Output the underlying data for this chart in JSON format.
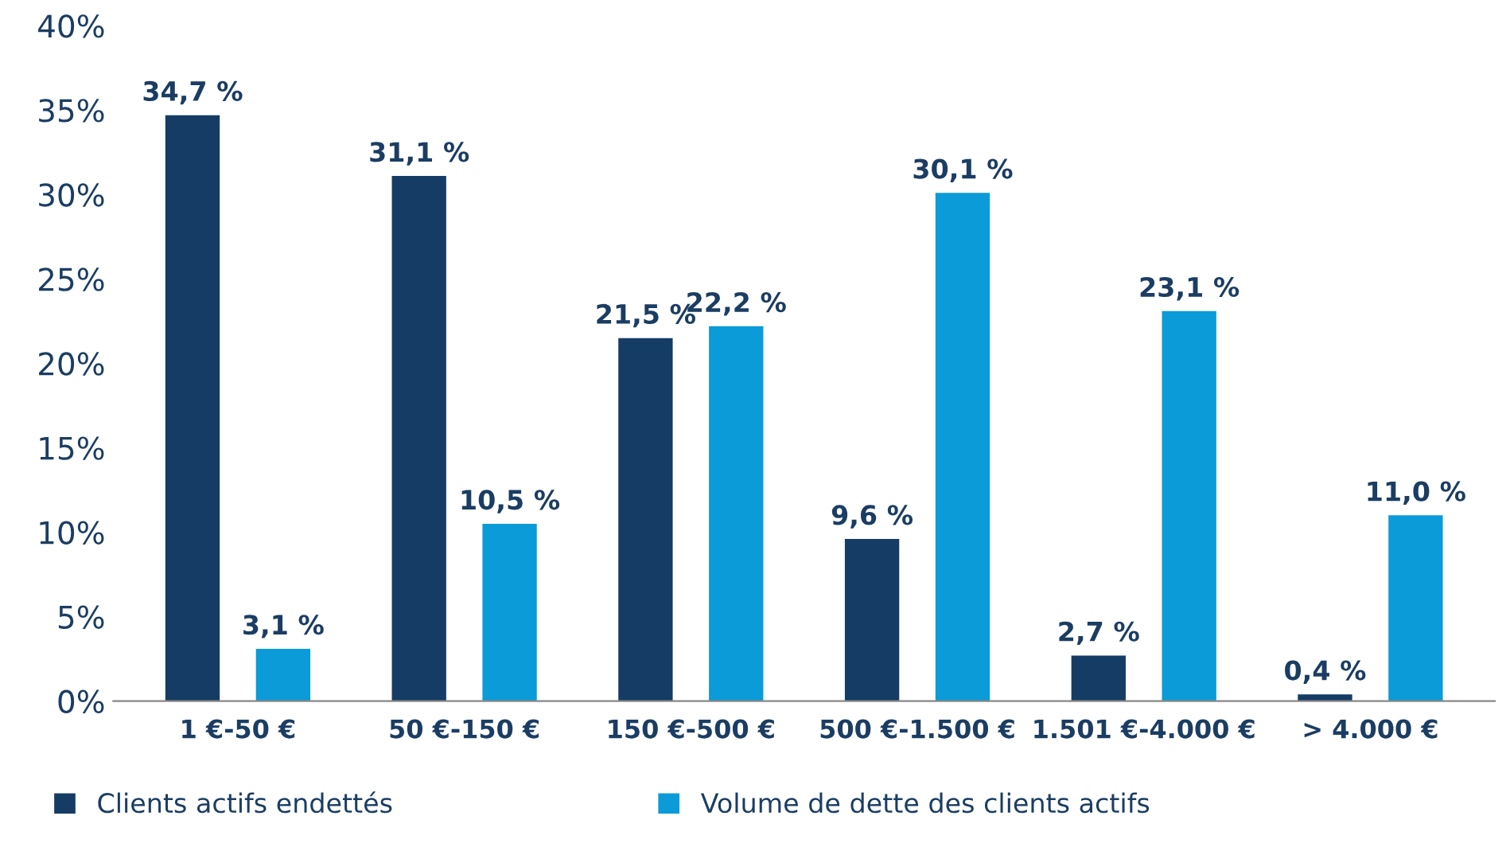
{
  "chart_data": {
    "type": "bar",
    "categories": [
      "1 €-50 €",
      "50 €-150 €",
      "150 €-500 €",
      "500 €-1.500 €",
      "1.501 €-4.000 €",
      "> 4.000 €"
    ],
    "series": [
      {
        "name": "Clients actifs endettés",
        "color": "#143c64",
        "values": [
          34.7,
          31.1,
          21.5,
          9.6,
          2.7,
          0.4
        ],
        "value_labels": [
          "34,7 %",
          "31,1 %",
          "21,5 %",
          "9,6 %",
          "2,7 %",
          "0,4 %"
        ]
      },
      {
        "name": "Volume de dette des clients actifs",
        "color": "#0b9bd8",
        "values": [
          3.1,
          10.5,
          22.2,
          30.1,
          23.1,
          11.0
        ],
        "value_labels": [
          "3,1 %",
          "10,5 %",
          "22,2 %",
          "30,1 %",
          "23,1 %",
          "11,0 %"
        ]
      }
    ],
    "ylim": [
      0,
      40
    ],
    "yticks": [
      {
        "value": 0,
        "label": "0%"
      },
      {
        "value": 5,
        "label": "5%"
      },
      {
        "value": 10,
        "label": "10%"
      },
      {
        "value": 15,
        "label": "15%"
      },
      {
        "value": 20,
        "label": "20%"
      },
      {
        "value": 25,
        "label": "25%"
      },
      {
        "value": 30,
        "label": "30%"
      },
      {
        "value": 35,
        "label": "35%"
      },
      {
        "value": 40,
        "label": "40%"
      }
    ],
    "grid": false,
    "legend": "bottom left"
  }
}
